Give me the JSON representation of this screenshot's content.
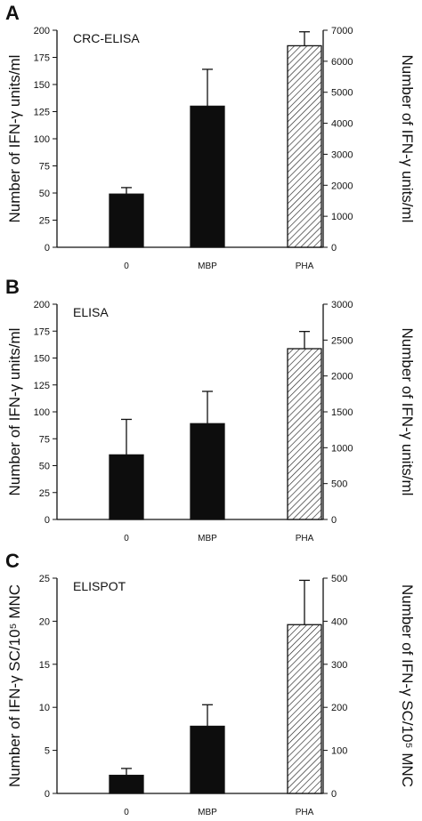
{
  "chart_data": [
    {
      "type": "bar",
      "panel": "A",
      "assay": "CRC-ELISA",
      "ylabel_left": "Number of IFN-γ units/ml",
      "ylabel_right": "Number of IFN-γ units/ml",
      "left_axis": {
        "ylim": [
          0,
          200
        ],
        "ticks": [
          "0",
          "25",
          "50",
          "75",
          "100",
          "125",
          "150",
          "175",
          "200"
        ]
      },
      "right_axis": {
        "ylim": [
          0,
          7000
        ],
        "ticks": [
          "0",
          "1000",
          "2000",
          "3000",
          "4000",
          "5000",
          "6000",
          "7000"
        ]
      },
      "categories": [
        "0",
        "MBP",
        "PHA"
      ],
      "bars": [
        {
          "category": "0",
          "value": 49,
          "error": 6,
          "axis": "left",
          "fill": "solid"
        },
        {
          "category": "MBP",
          "value": 130,
          "error": 34,
          "axis": "left",
          "fill": "solid"
        },
        {
          "category": "PHA",
          "value": 6500,
          "error": 450,
          "axis": "right",
          "fill": "hatched"
        }
      ]
    },
    {
      "type": "bar",
      "panel": "B",
      "assay": "ELISA",
      "ylabel_left": "Number of IFN-γ units/ml",
      "ylabel_right": "Number of IFN-γ units/ml",
      "left_axis": {
        "ylim": [
          0,
          200
        ],
        "ticks": [
          "0",
          "25",
          "50",
          "75",
          "100",
          "125",
          "150",
          "175",
          "200"
        ]
      },
      "right_axis": {
        "ylim": [
          0,
          3000
        ],
        "ticks": [
          "0",
          "500",
          "1000",
          "1500",
          "2000",
          "2500",
          "3000"
        ]
      },
      "categories": [
        "0",
        "MBP",
        "PHA"
      ],
      "bars": [
        {
          "category": "0",
          "value": 60,
          "error": 33,
          "axis": "left",
          "fill": "solid"
        },
        {
          "category": "MBP",
          "value": 89,
          "error": 30,
          "axis": "left",
          "fill": "solid"
        },
        {
          "category": "PHA",
          "value": 2380,
          "error": 240,
          "axis": "right",
          "fill": "hatched"
        }
      ]
    },
    {
      "type": "bar",
      "panel": "C",
      "assay": "ELISPOT",
      "ylabel_left": "Number of IFN-γ SC/10⁵ MNC",
      "ylabel_right": "Number of IFN-γ SC/10⁵ MNC",
      "left_axis": {
        "ylim": [
          0,
          25
        ],
        "ticks": [
          "0",
          "5",
          "10",
          "15",
          "20",
          "25"
        ]
      },
      "right_axis": {
        "ylim": [
          0,
          500
        ],
        "ticks": [
          "0",
          "100",
          "200",
          "300",
          "400",
          "500"
        ]
      },
      "categories": [
        "0",
        "MBP",
        "PHA"
      ],
      "bars": [
        {
          "category": "0",
          "value": 2.1,
          "error": 0.8,
          "axis": "left",
          "fill": "solid"
        },
        {
          "category": "MBP",
          "value": 7.8,
          "error": 2.5,
          "axis": "left",
          "fill": "solid"
        },
        {
          "category": "PHA",
          "value": 392,
          "error": 103,
          "axis": "right",
          "fill": "hatched"
        }
      ]
    }
  ]
}
